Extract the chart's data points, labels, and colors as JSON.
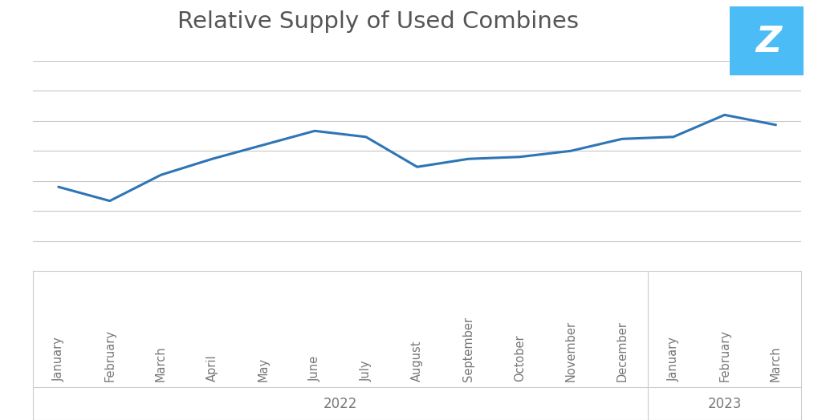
{
  "title": "Relative Supply of Used Combines",
  "title_color": "#555555",
  "title_fontsize": 21,
  "line_color": "#2E75B6",
  "line_width": 2.2,
  "background_color": "#FFFFFF",
  "plot_bg_color": "#FFFFFF",
  "grid_color": "#C8C8C8",
  "labels_2022": [
    "January",
    "February",
    "March",
    "April",
    "May",
    "June",
    "July",
    "August",
    "September",
    "October",
    "November",
    "December"
  ],
  "labels_2023": [
    "January",
    "February",
    "March"
  ],
  "tick_color": "#777777",
  "tick_fontsize": 10.5,
  "year_fontsize": 12,
  "values": [
    0.42,
    0.35,
    0.48,
    0.56,
    0.63,
    0.7,
    0.67,
    0.52,
    0.56,
    0.57,
    0.6,
    0.66,
    0.67,
    0.78,
    0.73
  ],
  "ylim": [
    0.0,
    1.05
  ],
  "separator_color": "#AAAAAA",
  "border_color": "#CCCCCC",
  "num_gridlines": 8,
  "logo_bg_color": "#4BBCF5",
  "logo_border_color": "#3AAAE0"
}
